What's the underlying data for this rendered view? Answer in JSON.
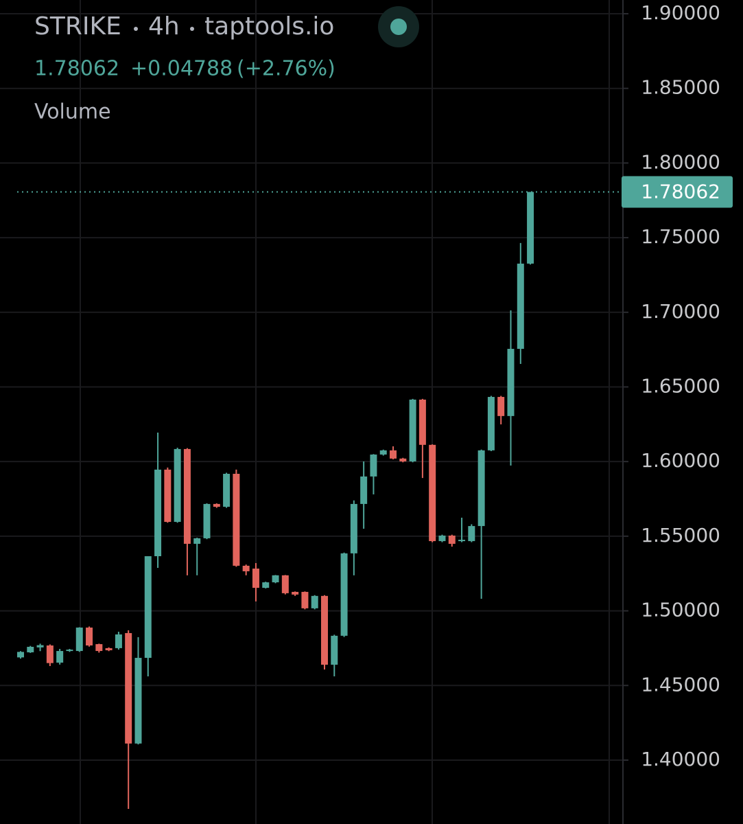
{
  "chart_data": {
    "type": "candlestick",
    "title": "STRIKE",
    "interval": "4h",
    "source": "taptools.io",
    "last_price": 1.78062,
    "change": {
      "value": 0.04788,
      "label": "+0.04788"
    },
    "change_pct": {
      "value": 2.76,
      "label": "(+2.76%)"
    },
    "indicator": "Volume",
    "up_color": "#4fa69a",
    "down_color": "#e2655d",
    "ylim": [
      1.3572,
      1.9092
    ],
    "yticks": [
      {
        "value": 1.4,
        "label": "1.40000"
      },
      {
        "value": 1.45,
        "label": "1.45000"
      },
      {
        "value": 1.5,
        "label": "1.50000"
      },
      {
        "value": 1.55,
        "label": "1.55000"
      },
      {
        "value": 1.6,
        "label": "1.60000"
      },
      {
        "value": 1.65,
        "label": "1.65000"
      },
      {
        "value": 1.7,
        "label": "1.70000"
      },
      {
        "value": 1.75,
        "label": "1.75000"
      },
      {
        "value": 1.8,
        "label": "1.80000"
      },
      {
        "value": 1.85,
        "label": "1.85000"
      },
      {
        "value": 1.9,
        "label": "1.90000"
      }
    ],
    "grid": true,
    "open": [
      1.4688,
      1.4722,
      1.4755,
      1.4768,
      1.4653,
      1.4731,
      1.4731,
      1.4888,
      1.4777,
      1.475,
      1.475,
      1.4851,
      1.4111,
      1.4685,
      1.5366,
      1.5946,
      1.5596,
      1.6084,
      1.5449,
      1.5486,
      1.5716,
      1.5697,
      1.5918,
      1.5302,
      1.5283,
      1.5154,
      1.5191,
      1.5238,
      1.5127,
      1.5127,
      1.5017,
      1.51,
      1.4639,
      1.4833,
      1.5385,
      1.5716,
      1.59,
      1.6047,
      1.6075,
      1.602,
      1.6001,
      1.6415,
      1.6112,
      1.5467,
      1.5504,
      1.5467,
      1.5467,
      1.5568,
      1.6075,
      1.6433,
      1.6305,
      1.6755,
      1.7326
    ],
    "high": [
      1.473,
      1.4765,
      1.478,
      1.4775,
      1.4745,
      1.4745,
      1.489,
      1.4895,
      1.478,
      1.4755,
      1.486,
      1.487,
      1.4824,
      1.5366,
      1.6194,
      1.596,
      1.6093,
      1.609,
      1.549,
      1.572,
      1.572,
      1.5925,
      1.5946,
      1.531,
      1.532,
      1.5195,
      1.524,
      1.524,
      1.513,
      1.513,
      1.5105,
      1.5105,
      1.484,
      1.539,
      1.574,
      1.6001,
      1.605,
      1.608,
      1.6102,
      1.6025,
      1.642,
      1.642,
      1.6115,
      1.551,
      1.551,
      1.5624,
      1.558,
      1.608,
      1.644,
      1.644,
      1.7013,
      1.7464,
      1.78062
    ],
    "low": [
      1.468,
      1.4718,
      1.473,
      1.463,
      1.464,
      1.4725,
      1.4725,
      1.476,
      1.472,
      1.473,
      1.474,
      1.3673,
      1.4105,
      1.4561,
      1.5288,
      1.559,
      1.559,
      1.5238,
      1.5238,
      1.548,
      1.569,
      1.569,
      1.5295,
      1.5238,
      1.5063,
      1.515,
      1.5185,
      1.511,
      1.51,
      1.501,
      1.501,
      1.4607,
      1.4561,
      1.4825,
      1.5238,
      1.555,
      1.578,
      1.604,
      1.6015,
      1.5995,
      1.5995,
      1.589,
      1.546,
      1.546,
      1.543,
      1.546,
      1.546,
      1.5081,
      1.607,
      1.6249,
      1.5973,
      1.6654,
      1.732
    ],
    "close": [
      1.4725,
      1.4759,
      1.477,
      1.465,
      1.4731,
      1.474,
      1.4888,
      1.4768,
      1.4731,
      1.4736,
      1.4842,
      1.4111,
      1.4685,
      1.5366,
      1.5946,
      1.5596,
      1.6084,
      1.5449,
      1.5486,
      1.5716,
      1.5697,
      1.5918,
      1.5302,
      1.5265,
      1.5154,
      1.5191,
      1.5238,
      1.5118,
      1.5109,
      1.5017,
      1.51,
      1.4639,
      1.4833,
      1.5385,
      1.5716,
      1.59,
      1.6047,
      1.6075,
      1.602,
      1.6001,
      1.6415,
      1.6112,
      1.5467,
      1.5504,
      1.5449,
      1.5476,
      1.5568,
      1.6075,
      1.6433,
      1.6305,
      1.6755,
      1.7326,
      1.78062
    ]
  }
}
